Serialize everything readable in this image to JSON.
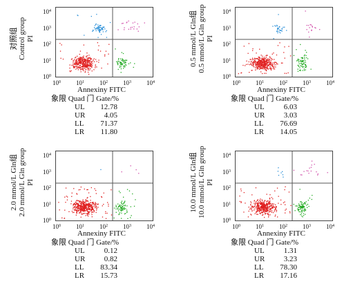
{
  "axes": {
    "x_label": "Annexiny FITC",
    "y_label": "PI",
    "ticks": [
      {
        "base": "10",
        "exp": "0"
      },
      {
        "base": "10",
        "exp": "1"
      },
      {
        "base": "10",
        "exp": "2"
      },
      {
        "base": "10",
        "exp": "3"
      },
      {
        "base": "10",
        "exp": "4"
      }
    ]
  },
  "table_header": "象限  Quad  门 Gate/%",
  "colors": {
    "LL": "#e02020",
    "LR": "#22aa22",
    "UL": "#2a8fd8",
    "UR": "#d04aa8",
    "gate": "#555555"
  },
  "chart_data": [
    {
      "type": "scatter",
      "group_label_cn": "对照组",
      "group_label_en": "Control group",
      "quadrants": [
        {
          "quad": "UL",
          "gate": "12.78",
          "value": 12.78
        },
        {
          "quad": "UR",
          "gate": "4.05",
          "value": 4.05
        },
        {
          "quad": "LL",
          "gate": "71.37",
          "value": 71.37
        },
        {
          "quad": "LR",
          "gate": "11.80",
          "value": 11.8
        }
      ]
    },
    {
      "type": "scatter",
      "group_label_cn": "0.5 mmol/L Gln组",
      "group_label_en": "0.5 mmol/L Gln group",
      "quadrants": [
        {
          "quad": "UL",
          "gate": "6.03",
          "value": 6.03
        },
        {
          "quad": "UR",
          "gate": "3.03",
          "value": 3.03
        },
        {
          "quad": "LL",
          "gate": "76.69",
          "value": 76.69
        },
        {
          "quad": "LR",
          "gate": "14.05",
          "value": 14.05
        }
      ]
    },
    {
      "type": "scatter",
      "group_label_cn": "2.0 mmol/L Gln组",
      "group_label_en": "2.0 mmol/L Gln group",
      "quadrants": [
        {
          "quad": "UL",
          "gate": "0.12",
          "value": 0.12
        },
        {
          "quad": "UR",
          "gate": "0.82",
          "value": 0.82
        },
        {
          "quad": "LL",
          "gate": "83.34",
          "value": 83.34
        },
        {
          "quad": "LR",
          "gate": "15.73",
          "value": 15.73
        }
      ]
    },
    {
      "type": "scatter",
      "group_label_cn": "10.0 mmol/L Gln组",
      "group_label_en": "10.0 mmol/L Gln group",
      "quadrants": [
        {
          "quad": "UL",
          "gate": "1.31",
          "value": 1.31
        },
        {
          "quad": "UR",
          "gate": "3.23",
          "value": 3.23
        },
        {
          "quad": "LL",
          "gate": "78.30",
          "value": 78.3
        },
        {
          "quad": "LR",
          "gate": "17.16",
          "value": 17.16
        }
      ]
    }
  ]
}
